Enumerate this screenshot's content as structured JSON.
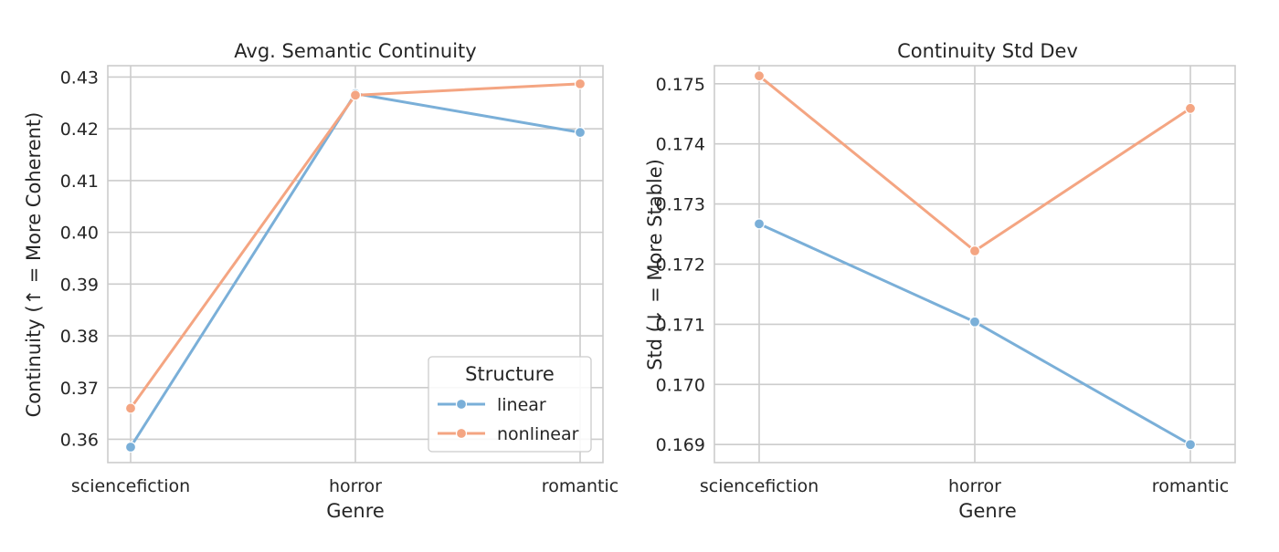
{
  "chart_data": [
    {
      "type": "line",
      "title": "Avg. Semantic Continuity",
      "xlabel": "Genre",
      "ylabel": "Continuity (↑ = More Coherent)",
      "categories": [
        "sciencefiction",
        "horror",
        "romantic"
      ],
      "ylim": [
        0.3555,
        0.4322
      ],
      "yticks": [
        0.36,
        0.37,
        0.38,
        0.39,
        0.4,
        0.41,
        0.42,
        0.43
      ],
      "ytick_labels": [
        "0.36",
        "0.37",
        "0.38",
        "0.39",
        "0.40",
        "0.41",
        "0.42",
        "0.43"
      ],
      "grid": true,
      "legend": {
        "title": "Structure",
        "placement": "lower-right"
      },
      "series": [
        {
          "name": "linear",
          "color": "#7aafd8",
          "values": [
            0.3585,
            0.4268,
            0.4193
          ]
        },
        {
          "name": "nonlinear",
          "color": "#f4a582",
          "values": [
            0.366,
            0.4265,
            0.4287
          ]
        }
      ]
    },
    {
      "type": "line",
      "title": "Continuity Std Dev",
      "xlabel": "Genre",
      "ylabel": "Std (↓ = More Stable)",
      "categories": [
        "sciencefiction",
        "horror",
        "romantic"
      ],
      "ylim": [
        0.1687,
        0.1753
      ],
      "yticks": [
        0.169,
        0.17,
        0.171,
        0.172,
        0.173,
        0.174,
        0.175
      ],
      "ytick_labels": [
        "0.169",
        "0.170",
        "0.171",
        "0.172",
        "0.173",
        "0.174",
        "0.175"
      ],
      "grid": true,
      "series": [
        {
          "name": "linear",
          "color": "#7aafd8",
          "values": [
            0.17267,
            0.17104,
            0.169
          ]
        },
        {
          "name": "nonlinear",
          "color": "#f4a582",
          "values": [
            0.17513,
            0.17222,
            0.17459
          ]
        }
      ]
    }
  ]
}
